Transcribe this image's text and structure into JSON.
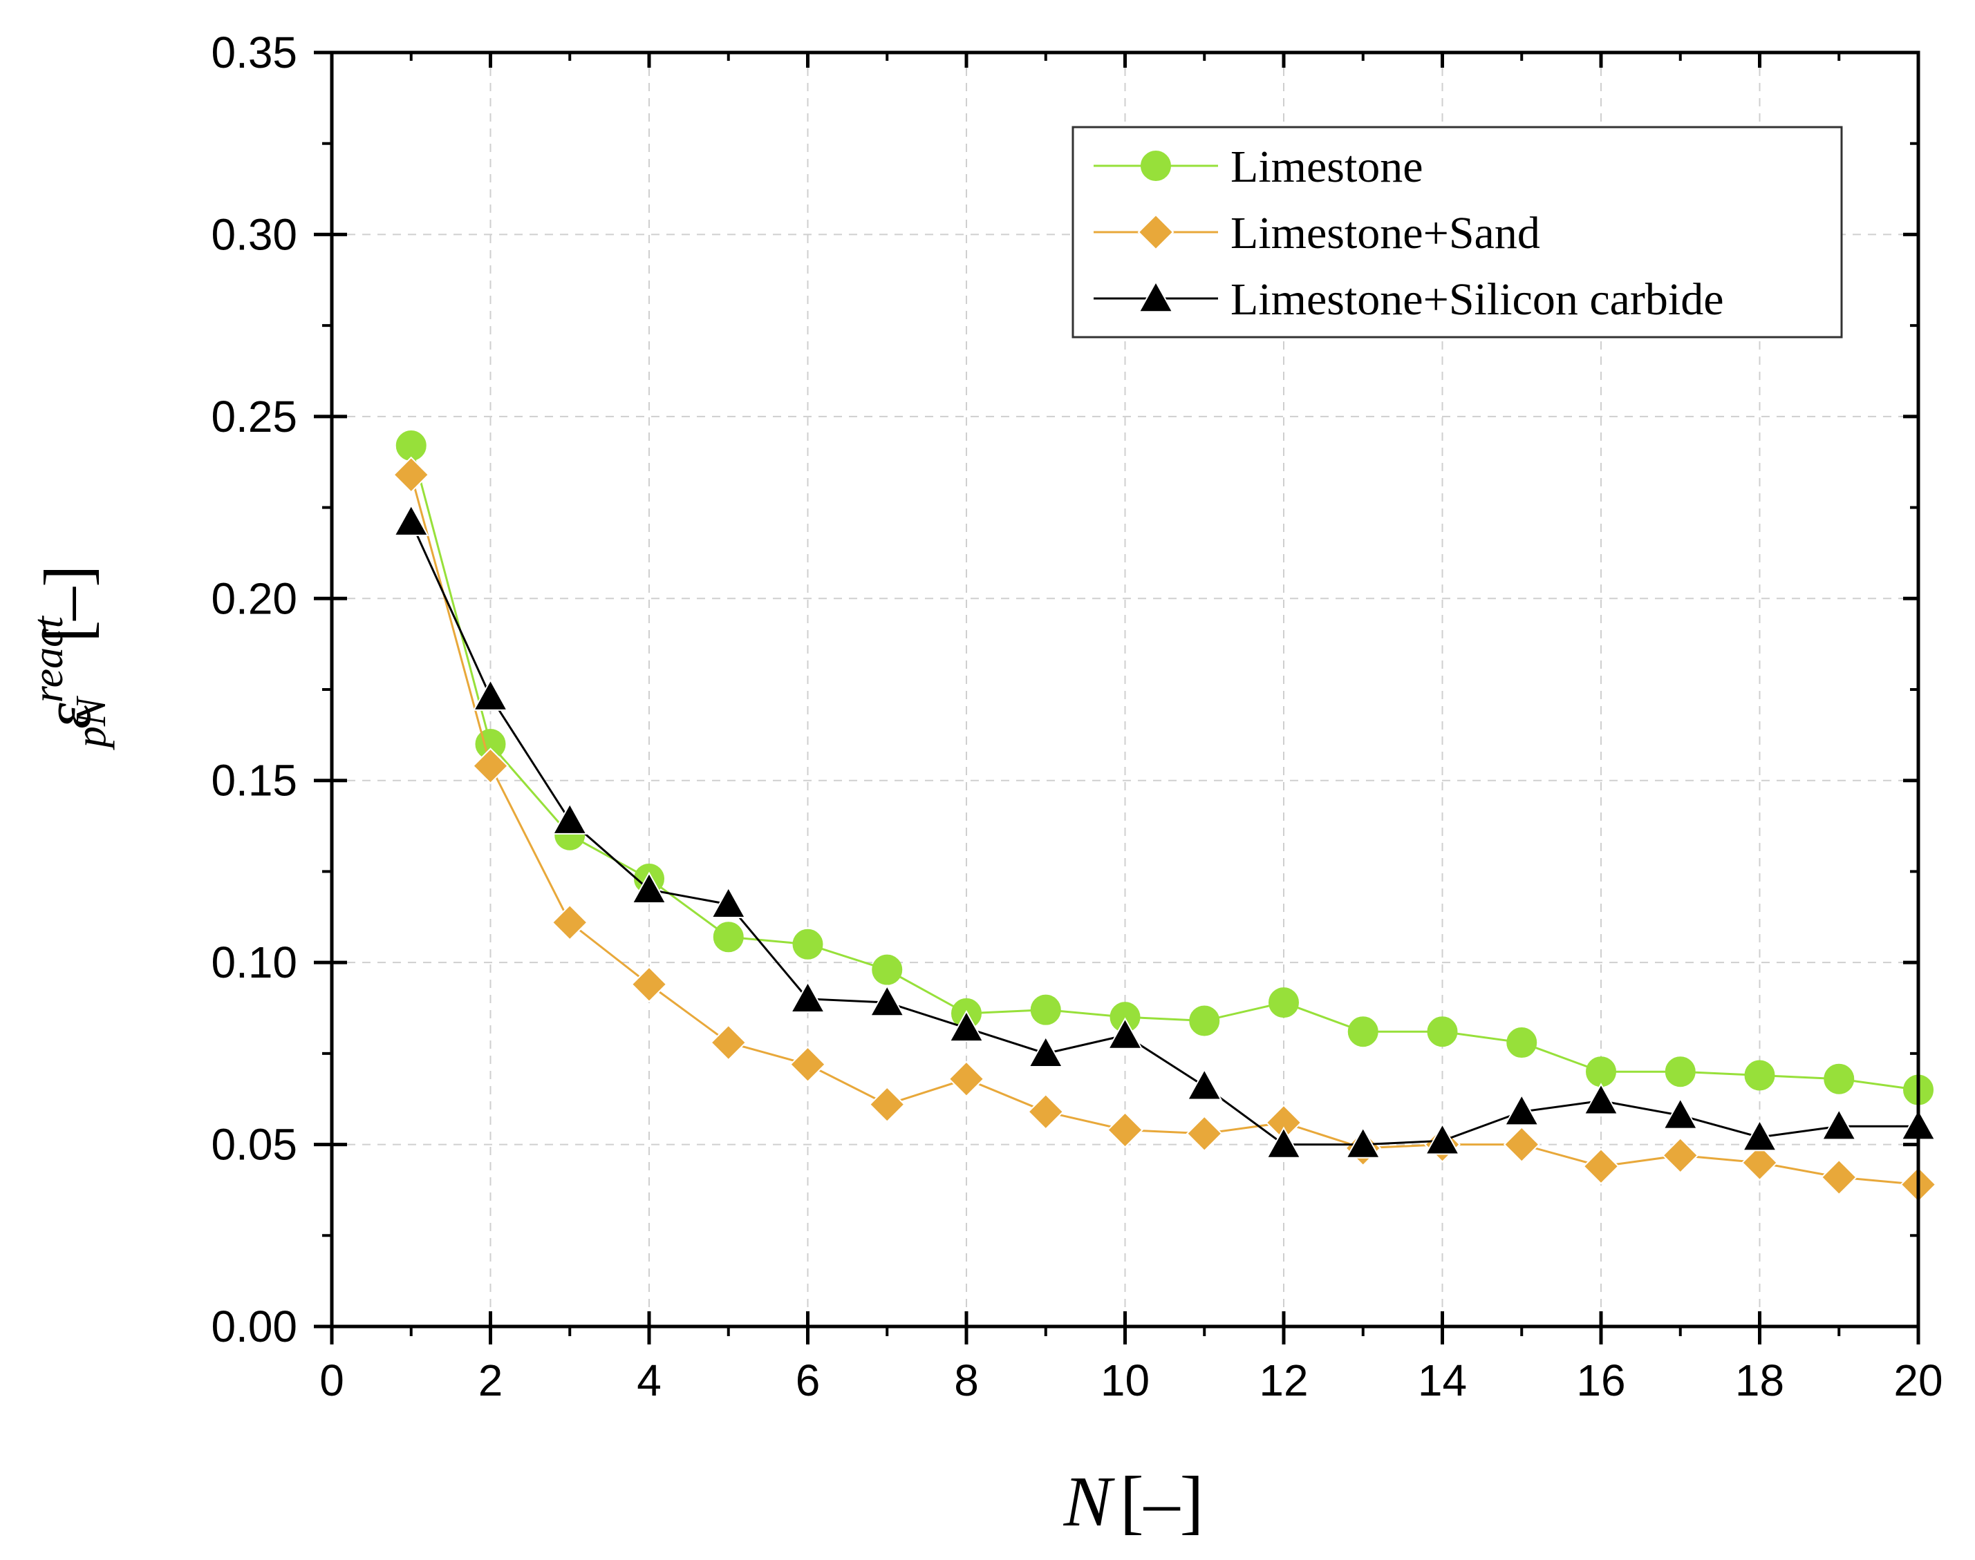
{
  "chart_data": {
    "type": "line",
    "title": "",
    "xlabel": {
      "symbol": "N",
      "unit": "[–]"
    },
    "ylabel": {
      "base": "ε",
      "subscript": "pN",
      "superscript": "react",
      "unit": "[–]"
    },
    "xlim": [
      0,
      20
    ],
    "ylim": [
      0,
      0.35
    ],
    "x_ticks": [
      0,
      2,
      4,
      6,
      8,
      10,
      12,
      14,
      16,
      18,
      20
    ],
    "x_tick_labels": [
      "0",
      "2",
      "4",
      "6",
      "8",
      "10",
      "12",
      "14",
      "16",
      "18",
      "20"
    ],
    "y_ticks": [
      0,
      0.05,
      0.1,
      0.15,
      0.2,
      0.25,
      0.3,
      0.35
    ],
    "y_tick_labels": [
      "0.00",
      "0.05",
      "0.10",
      "0.15",
      "0.20",
      "0.25",
      "0.30",
      "0.35"
    ],
    "grid": true,
    "legend_position": "top-right",
    "x": [
      1,
      2,
      3,
      4,
      5,
      6,
      7,
      8,
      9,
      10,
      11,
      12,
      13,
      14,
      15,
      16,
      17,
      18,
      19,
      20
    ],
    "series": [
      {
        "name": "Limestone",
        "color": "#97e03a",
        "marker": "circle",
        "values": [
          0.242,
          0.16,
          0.135,
          0.123,
          0.107,
          0.105,
          0.098,
          0.086,
          0.087,
          0.085,
          0.084,
          0.089,
          0.081,
          0.081,
          0.078,
          0.07,
          0.07,
          0.069,
          0.068,
          0.065
        ]
      },
      {
        "name": "Limestone+Sand",
        "color": "#e8a83a",
        "marker": "diamond",
        "values": [
          0.234,
          0.154,
          0.111,
          0.094,
          0.078,
          0.072,
          0.061,
          0.068,
          0.059,
          0.054,
          0.053,
          0.056,
          0.049,
          0.05,
          0.05,
          0.044,
          0.047,
          0.045,
          0.041,
          0.039
        ]
      },
      {
        "name": "Limestone+Silicon carbide",
        "color": "#000000",
        "marker": "triangle",
        "values": [
          0.221,
          0.173,
          0.139,
          0.12,
          0.116,
          0.09,
          0.089,
          0.082,
          0.075,
          0.08,
          0.066,
          0.05,
          0.05,
          0.051,
          0.059,
          0.062,
          0.058,
          0.052,
          0.055,
          0.055
        ]
      }
    ]
  }
}
